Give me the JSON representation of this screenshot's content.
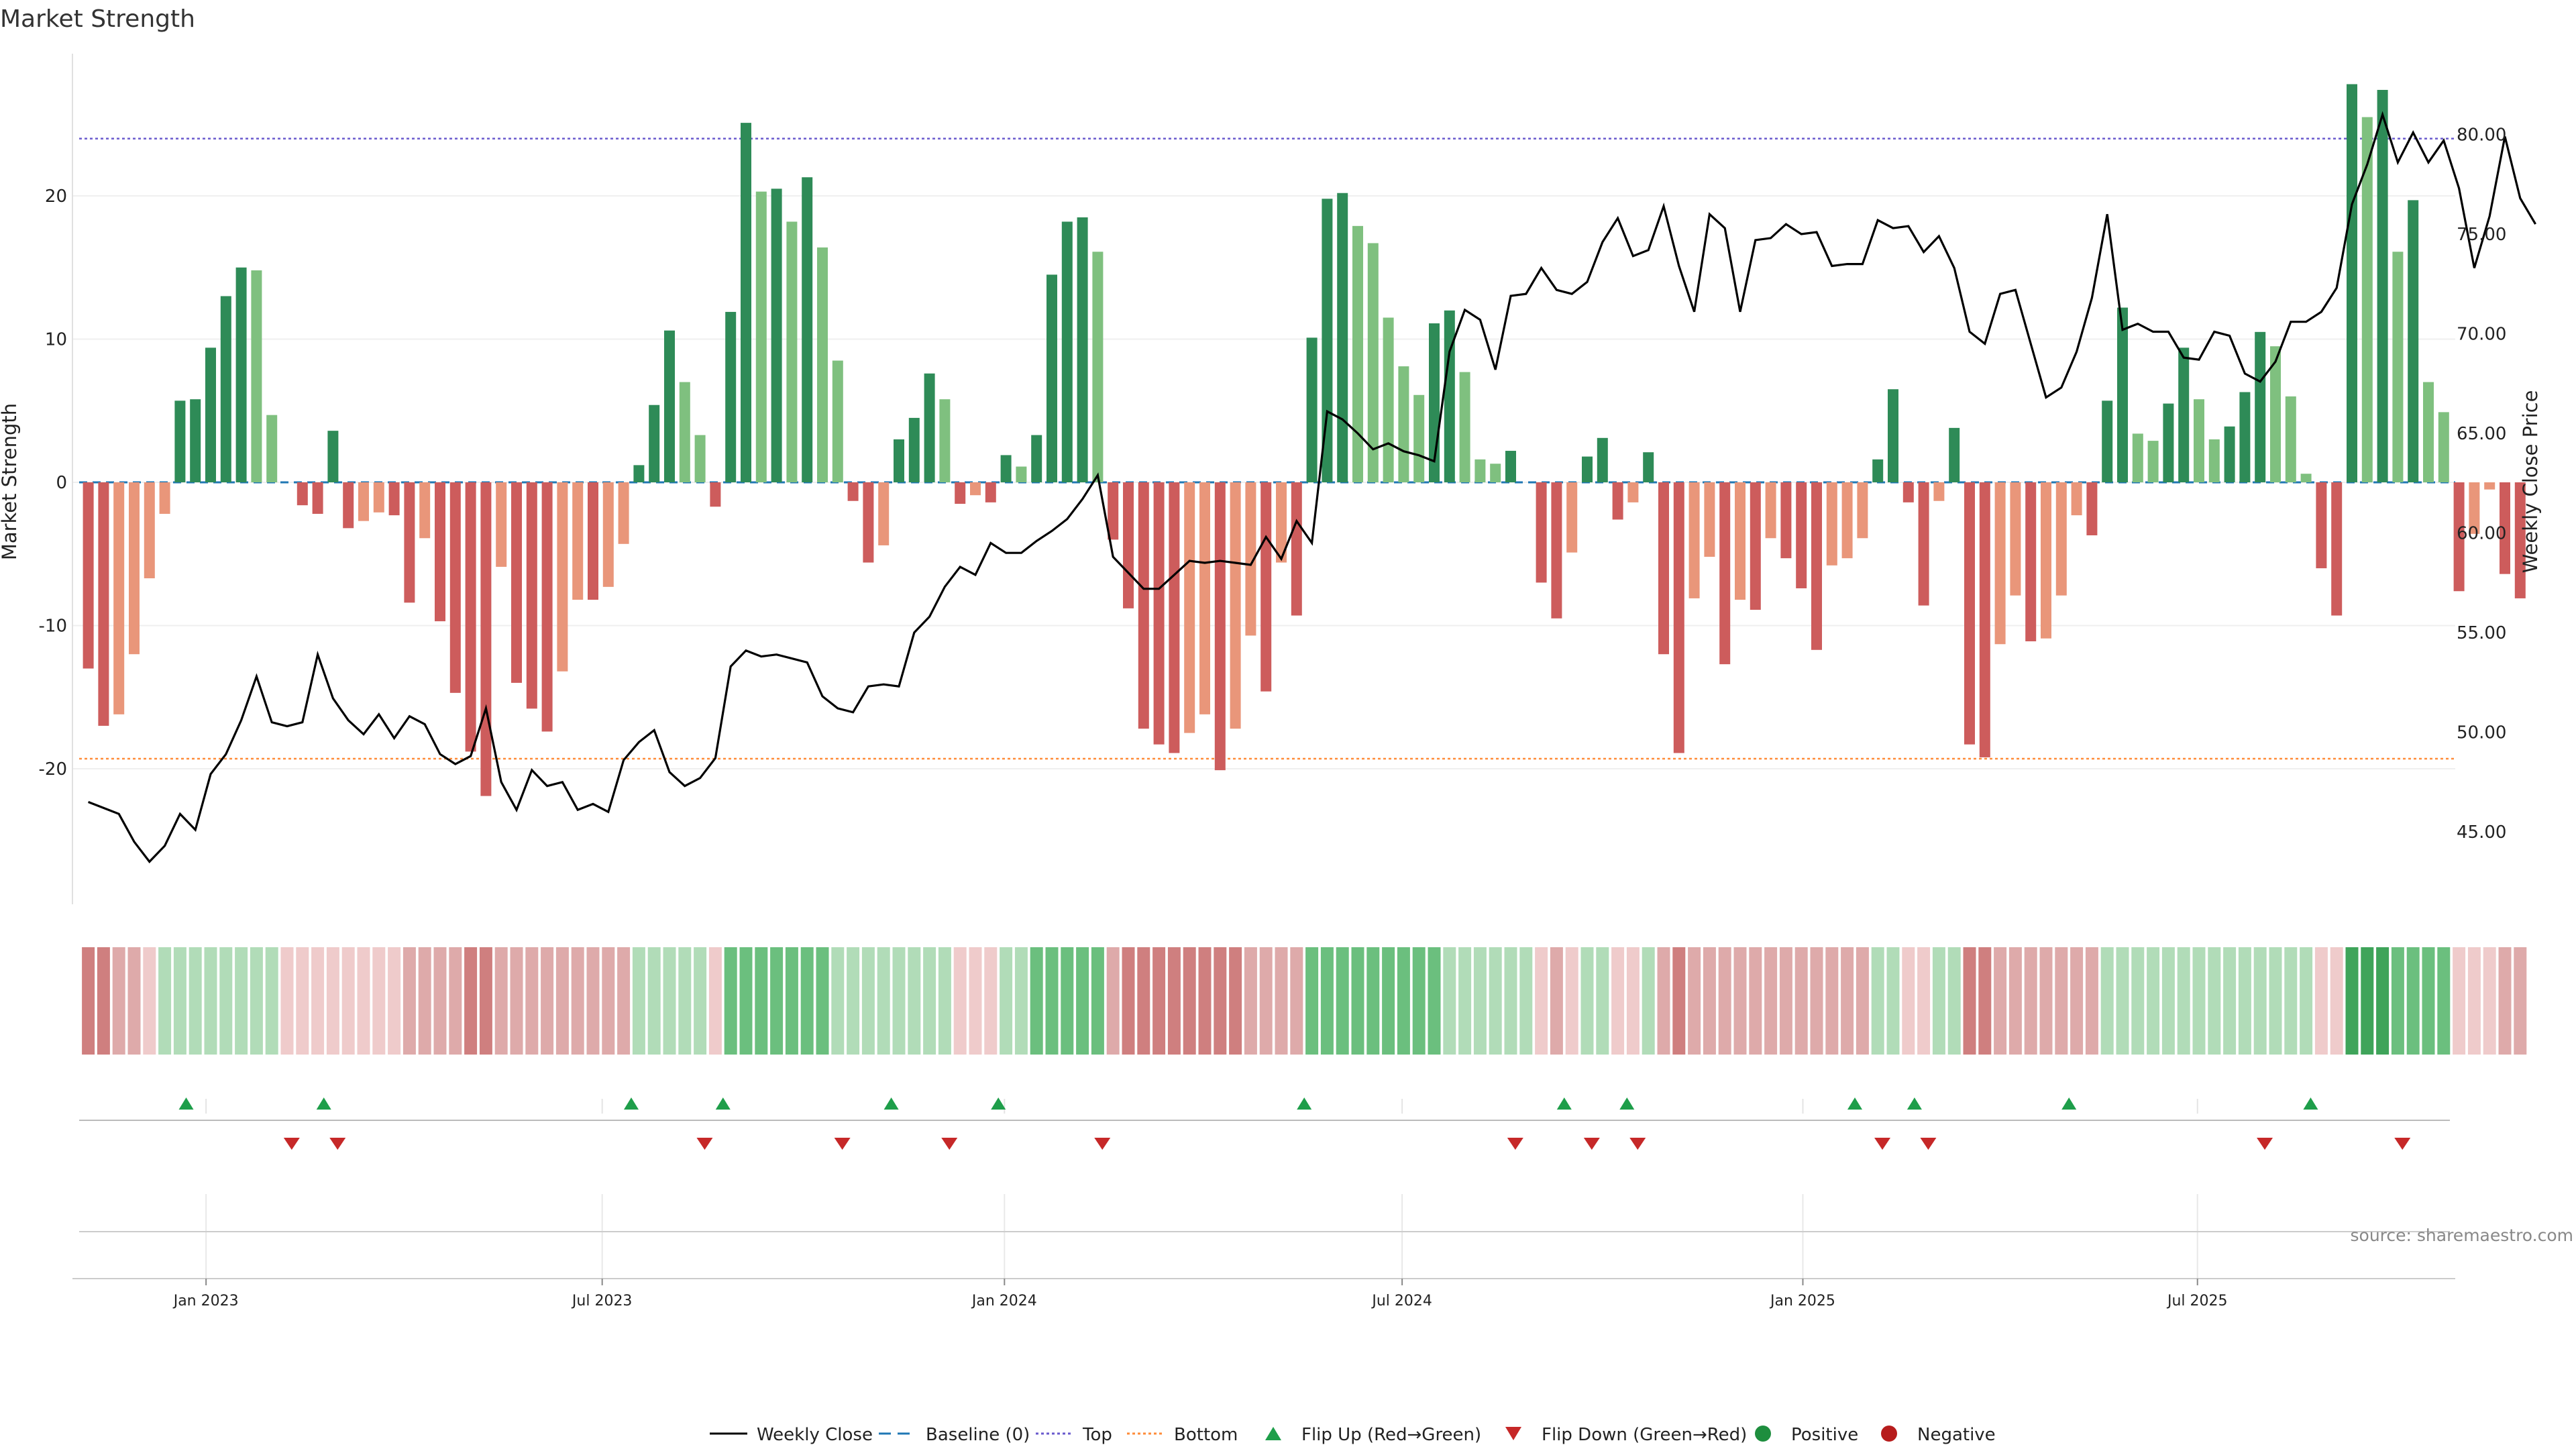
{
  "title": "Market Strength",
  "source": "source: sharemaestro.com",
  "colors": {
    "pos_strong": "#2e8b57",
    "pos_weak": "#7fc07f",
    "neg_strong": "#cd5c5c",
    "neg_weak": "#e9967a",
    "price_line": "#000000",
    "baseline": "#1f77b4",
    "top": "#6a5acd",
    "bottom": "#ff8c3a",
    "flip_up": "#1e9e4a",
    "flip_down": "#c62828",
    "positive": "#1e8e3e",
    "negative": "#b71c1c"
  },
  "chart_data": {
    "type": "bar+line",
    "title": "Market Strength",
    "y_left_label": "Market Strength",
    "y_right_label": "Weekly Close Price",
    "y_left_ticks": [
      "20",
      "10",
      "0",
      "-10",
      "-20"
    ],
    "y_right_ticks": [
      "80.00",
      "75.00",
      "70.00",
      "65.00",
      "60.00",
      "55.00",
      "50.00",
      "45.00"
    ],
    "ylim_left": [
      -30,
      30
    ],
    "ylim_right": [
      41,
      83
    ],
    "x_ticks": [
      {
        "label": "Jan 2023",
        "week": 7.7
      },
      {
        "label": "Jul 2023",
        "week": 33.6
      },
      {
        "label": "Jan 2024",
        "week": 59.9
      },
      {
        "label": "Jul 2024",
        "week": 85.9
      },
      {
        "label": "Jan 2025",
        "week": 112.1
      },
      {
        "label": "Jul 2025",
        "week": 137.9
      }
    ],
    "top_line": 24,
    "bottom_line": -19.3,
    "strength": [
      -13,
      -17,
      -16.2,
      -12,
      -6.7,
      -2.2,
      5.7,
      5.8,
      9.4,
      13,
      15,
      14.8,
      4.7,
      0,
      -1.6,
      -2.2,
      3.6,
      -3.2,
      -2.7,
      -2.1,
      -2.3,
      -8.4,
      -3.9,
      -9.7,
      -14.7,
      -18.8,
      -21.9,
      -5.9,
      -14,
      -15.8,
      -17.4,
      -13.2,
      -8.2,
      -8.2,
      -7.3,
      -4.3,
      1.2,
      5.4,
      10.6,
      7,
      3.3,
      -1.7,
      11.9,
      25.1,
      20.3,
      20.5,
      18.2,
      21.3,
      16.4,
      8.5,
      -1.3,
      -5.6,
      -4.4,
      3,
      4.5,
      7.6,
      5.8,
      -1.5,
      -0.9,
      -1.4,
      1.9,
      1.1,
      3.3,
      14.5,
      18.2,
      18.5,
      16.1,
      -4,
      -8.8,
      -17.2,
      -18.3,
      -18.9,
      -17.5,
      -16.2,
      -20.1,
      -17.2,
      -10.7,
      -14.6,
      -5.6,
      -9.3,
      10.1,
      19.8,
      20.2,
      17.9,
      16.7,
      11.5,
      8.1,
      6.1,
      11.1,
      12,
      7.7,
      1.6,
      1.3,
      2.2,
      0,
      -7,
      -9.5,
      -4.9,
      1.8,
      3.1,
      -2.6,
      -1.4,
      2.1,
      -12,
      -18.9,
      -8.1,
      -5.2,
      -12.7,
      -8.2,
      -8.9,
      -3.9,
      -5.3,
      -7.4,
      -11.7,
      -5.8,
      -5.3,
      -3.9,
      1.6,
      6.5,
      -1.4,
      -8.6,
      -1.3,
      3.8,
      -18.3,
      -19.2,
      -11.3,
      -7.9,
      -11.1,
      -10.9,
      -7.9,
      -2.3,
      -3.7,
      5.7,
      12.2,
      3.4,
      2.9,
      5.5,
      9.4,
      5.8,
      3,
      3.9,
      6.3,
      10.5,
      9.5,
      6,
      0.6,
      -6,
      -9.3,
      27.8,
      25.5,
      27.4,
      16.1,
      19.7,
      7,
      4.9,
      -7.6,
      -3.6,
      -0.5,
      -6.4,
      -8.1
    ],
    "weekly_close": [
      46.5,
      46.2,
      45.9,
      44.5,
      43.5,
      44.3,
      45.9,
      45.1,
      47.9,
      48.9,
      50.6,
      52.8,
      50.5,
      50.3,
      50.5,
      53.9,
      51.7,
      50.6,
      49.9,
      50.9,
      49.7,
      50.8,
      50.4,
      48.9,
      48.4,
      48.8,
      51.2,
      47.5,
      46.1,
      48.1,
      47.3,
      47.5,
      46.1,
      46.4,
      46.0,
      48.6,
      49.5,
      50.1,
      48.0,
      47.3,
      47.7,
      48.7,
      53.3,
      54.1,
      53.8,
      53.9,
      53.7,
      53.5,
      51.8,
      51.2,
      51.0,
      52.3,
      52.4,
      52.3,
      55.0,
      55.8,
      57.3,
      58.3,
      57.9,
      59.5,
      59.0,
      59.0,
      59.6,
      60.1,
      60.7,
      61.7,
      62.9,
      58.8,
      58.0,
      57.2,
      57.2,
      57.9,
      58.6,
      58.5,
      58.6,
      58.5,
      58.4,
      59.8,
      58.7,
      60.6,
      59.5,
      66.1,
      65.7,
      65.0,
      64.2,
      64.5,
      64.1,
      63.9,
      63.6,
      69.1,
      71.2,
      70.7,
      68.2,
      71.9,
      72.0,
      73.3,
      72.2,
      72.0,
      72.6,
      74.6,
      75.8,
      73.9,
      74.2,
      76.4,
      73.4,
      71.1,
      76.0,
      75.3,
      71.1,
      74.7,
      74.8,
      75.5,
      75.0,
      75.1,
      73.4,
      73.5,
      73.5,
      75.7,
      75.3,
      75.4,
      74.1,
      74.9,
      73.3,
      70.1,
      69.5,
      72.0,
      72.2,
      69.5,
      66.8,
      67.3,
      69.1,
      71.8,
      76.0,
      70.2,
      70.5,
      70.1,
      70.1,
      68.8,
      68.7,
      70.1,
      69.9,
      68.0,
      67.6,
      68.6,
      70.6,
      70.6,
      71.1,
      72.3,
      76.5,
      78.5,
      81.0,
      78.6,
      80.1,
      78.6,
      79.7,
      77.3,
      73.3,
      75.9,
      79.9,
      76.8,
      75.5
    ]
  },
  "regime_strip": [
    -3,
    -3,
    -2,
    -2,
    -1,
    1,
    1,
    1,
    1,
    1,
    1,
    1,
    1,
    -1,
    -1,
    -1,
    -1,
    -1,
    -1,
    -1,
    -1,
    -2,
    -2,
    -2,
    -2,
    -3,
    -3,
    -2,
    -2,
    -2,
    -2,
    -2,
    -2,
    -2,
    -2,
    -2,
    1,
    1,
    1,
    1,
    1,
    -1,
    2,
    2,
    2,
    2,
    2,
    2,
    2,
    1,
    1,
    1,
    1,
    1,
    1,
    1,
    1,
    -1,
    -1,
    -1,
    1,
    1,
    2,
    2,
    2,
    2,
    2,
    -2,
    -3,
    -3,
    -3,
    -3,
    -3,
    -3,
    -3,
    -3,
    -2,
    -2,
    -2,
    -2,
    2,
    2,
    2,
    2,
    2,
    2,
    2,
    2,
    2,
    1,
    1,
    1,
    1,
    1,
    1,
    -1,
    -2,
    -1,
    1,
    1,
    -1,
    -1,
    1,
    -2,
    -3,
    -2,
    -2,
    -2,
    -2,
    -2,
    -2,
    -2,
    -2,
    -2,
    -2,
    -2,
    -2,
    1,
    1,
    -1,
    -1,
    1,
    1,
    -3,
    -3,
    -2,
    -2,
    -2,
    -2,
    -2,
    -2,
    -2,
    1,
    1,
    1,
    1,
    1,
    1,
    1,
    1,
    1,
    1,
    1,
    1,
    1,
    1,
    -1,
    -1,
    3,
    3,
    3,
    2,
    2,
    2,
    2,
    -1,
    -1,
    -1,
    -2,
    -2
  ],
  "flips_up": [
    6.4,
    15.4,
    35.5,
    41.5,
    52.5,
    59.5,
    79.5,
    96.5,
    100.6,
    115.5,
    119.4,
    129.5,
    145.3
  ],
  "flips_down": [
    13.3,
    16.3,
    40.3,
    49.3,
    56.3,
    66.3,
    93.3,
    98.3,
    101.3,
    117.3,
    120.3,
    142.3,
    151.3
  ],
  "legend": [
    {
      "label": "Weekly Close",
      "kind": "line"
    },
    {
      "label": "Baseline (0)",
      "kind": "dash"
    },
    {
      "label": "Top",
      "kind": "dot"
    },
    {
      "label": "Bottom",
      "kind": "dot"
    },
    {
      "label": "Flip Up (Red→Green)",
      "kind": "tri-up"
    },
    {
      "label": "Flip Down (Green→Red)",
      "kind": "tri-down"
    },
    {
      "label": "Positive",
      "kind": "circle"
    },
    {
      "label": "Negative",
      "kind": "circle"
    }
  ]
}
